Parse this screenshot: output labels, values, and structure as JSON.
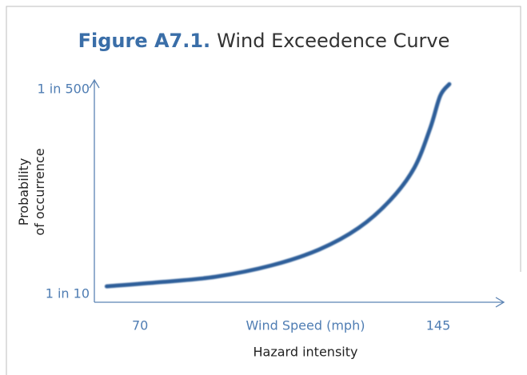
{
  "chart_data": {
    "type": "line",
    "title_prefix": "Figure A7.1.",
    "title": "Wind Exceedence Curve",
    "x_units_label": "Wind Speed (mph)",
    "xlabel": "Hazard intensity",
    "ylabel": [
      "Probability",
      "of occurrence"
    ],
    "x": [
      61.6,
      75,
      89,
      103,
      115,
      125,
      133,
      139,
      143,
      145.5,
      147.8
    ],
    "values": [
      29,
      39,
      52,
      79,
      117,
      169,
      236,
      313,
      408,
      485,
      513
    ],
    "color": "#2f5f9a",
    "xlim": [
      58.5,
      161.5
    ],
    "xticks": [
      70,
      145
    ],
    "ylim": [
      -9,
      523
    ],
    "yticks": [
      {
        "value": 10,
        "label": "1 in 10"
      },
      {
        "value": 500,
        "label": "1 in 500"
      }
    ]
  }
}
